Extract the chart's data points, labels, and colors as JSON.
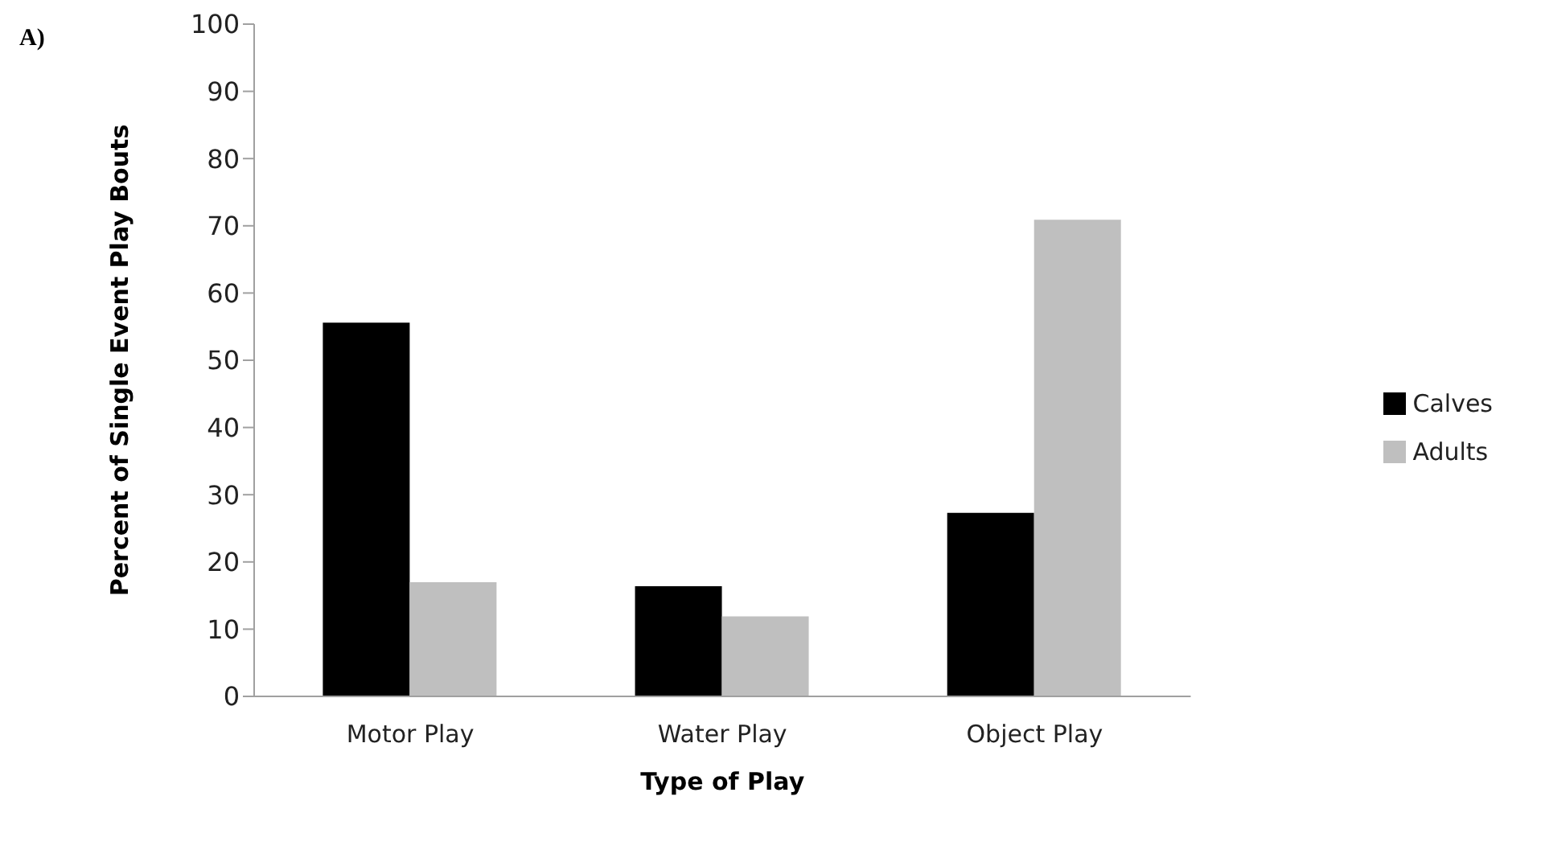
{
  "chart_data": {
    "type": "bar",
    "annotations": [
      "A)"
    ],
    "xlabel": "Type of Play",
    "ylabel": "Percent of  Single Event Play Bouts",
    "categories": [
      "Motor Play",
      "Water Play",
      "Object Play"
    ],
    "series": [
      {
        "name": "Calves",
        "color": "#000000",
        "values": [
          55.6,
          16.4,
          27.3
        ]
      },
      {
        "name": "Adults",
        "color": "#bfbfbf",
        "values": [
          17.0,
          11.9,
          70.9
        ]
      }
    ],
    "ylim": [
      0,
      100
    ],
    "yticks": [
      0,
      10,
      20,
      30,
      40,
      50,
      60,
      70,
      80,
      90,
      100
    ],
    "grid": false,
    "legend": "right"
  }
}
